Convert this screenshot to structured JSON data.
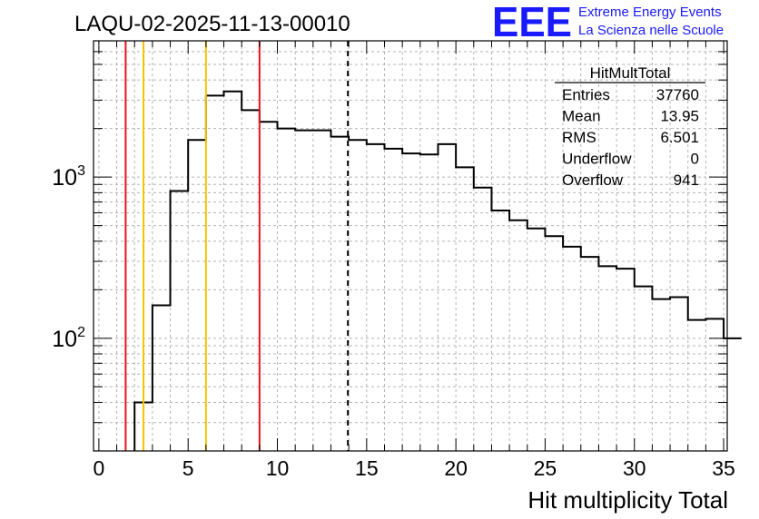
{
  "chart_data": {
    "type": "histogram",
    "title": "LAQU-02-2025-11-13-00010",
    "xlabel": "Hit multiplicity Total",
    "ylabel": "",
    "xlim": [
      -0.3,
      35.2
    ],
    "ylim": [
      20,
      7000
    ],
    "log_y": true,
    "grid": true,
    "bin_width": 1,
    "bin_start": 0,
    "values": [
      0,
      0,
      40,
      160,
      820,
      1700,
      3200,
      3400,
      2600,
      2200,
      2000,
      1950,
      1950,
      1780,
      1700,
      1600,
      1500,
      1400,
      1380,
      1600,
      1150,
      860,
      620,
      540,
      480,
      430,
      370,
      320,
      280,
      270,
      210,
      175,
      180,
      130,
      132,
      100
    ],
    "xticks": [
      "0",
      "5",
      "10",
      "15",
      "20",
      "25",
      "30",
      "35"
    ],
    "xtick_values": [
      0,
      5,
      10,
      15,
      20,
      25,
      30,
      35
    ],
    "yticks": [
      {
        "base": "10",
        "exp": "3",
        "value": 1000
      },
      {
        "base": "10",
        "exp": "2",
        "value": 100
      }
    ],
    "vertical_lines": [
      {
        "x": 1.5,
        "color": "#e8141b",
        "style": "solid"
      },
      {
        "x": 2.5,
        "color": "#f5c400",
        "style": "solid"
      },
      {
        "x": 6.0,
        "color": "#f5c400",
        "style": "solid"
      },
      {
        "x": 9.0,
        "color": "#e8141b",
        "style": "solid"
      },
      {
        "x": 13.95,
        "color": "#000000",
        "style": "dashed"
      }
    ],
    "stats_box": {
      "title": "HitMultTotal",
      "rows": [
        {
          "label": "Entries",
          "value": "37760"
        },
        {
          "label": "Mean",
          "value": "13.95"
        },
        {
          "label": "RMS",
          "value": "6.501"
        },
        {
          "label": "Underflow",
          "value": "0"
        },
        {
          "label": "Overflow",
          "value": "941"
        }
      ]
    }
  },
  "logo": {
    "mark": "EEE",
    "line1": "Extreme Energy Events",
    "line2": "La Scienza nelle Scuole",
    "color": "#1a1aff"
  }
}
